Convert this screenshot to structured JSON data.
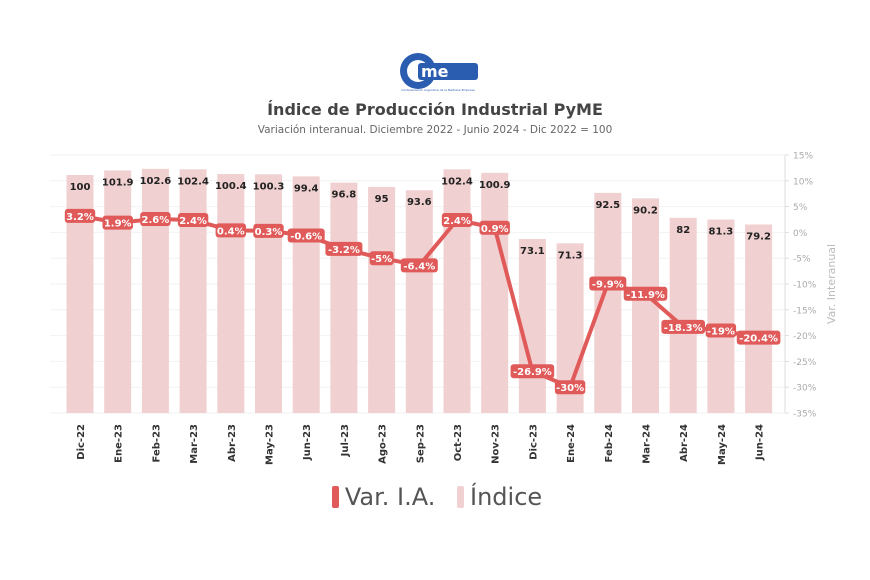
{
  "header": {
    "logo_text": "cme",
    "logo_tagline": "Confederación Argentina de la Mediana Empresa",
    "title": "Índice de Producción Industrial PyME",
    "subtitle": "Variación interanual. Diciembre 2022 - Junio 2024 - Dic 2022 = 100"
  },
  "colors": {
    "line": "#e05a5a",
    "bar": "#f0d0d0",
    "logo": "#2a5db0"
  },
  "chart_data": {
    "type": "bar+line",
    "title": "Índice de Producción Industrial PyME",
    "categories": [
      "Dic-22",
      "Ene-23",
      "Feb-23",
      "Mar-23",
      "Abr-23",
      "May-23",
      "Jun-23",
      "Jul-23",
      "Ago-23",
      "Sep-23",
      "Oct-23",
      "Nov-23",
      "Dic-23",
      "Ene-24",
      "Feb-24",
      "Mar-24",
      "Abr-24",
      "May-24",
      "Jun-24"
    ],
    "series": [
      {
        "name": "Índice",
        "type": "bar",
        "values": [
          100,
          101.9,
          102.6,
          102.4,
          100.4,
          100.3,
          99.4,
          96.8,
          95,
          93.6,
          102.4,
          100.9,
          73.1,
          71.3,
          92.5,
          90.2,
          82,
          81.3,
          79.2
        ],
        "labels": [
          "100",
          "101.9",
          "102.6",
          "102.4",
          "100.4",
          "100.3",
          "99.4",
          "96.8",
          "95",
          "93.6",
          "102.4",
          "100.9",
          "73.1",
          "71.3",
          "92.5",
          "90.2",
          "82",
          "81.3",
          "79.2"
        ]
      },
      {
        "name": "Var. I.A.",
        "type": "line",
        "axis": "right",
        "values": [
          3.2,
          1.9,
          2.6,
          2.4,
          0.4,
          0.3,
          -0.6,
          -3.2,
          -5,
          -6.4,
          2.4,
          0.9,
          -26.9,
          -30,
          -9.9,
          -11.9,
          -18.3,
          -19,
          -20.4
        ],
        "labels": [
          "3.2%",
          "1.9%",
          "2.6%",
          "2.4%",
          "0.4%",
          "0.3%",
          "-0.6%",
          "-3.2%",
          "-5%",
          "-6.4%",
          "2.4%",
          "0.9%",
          "-26.9%",
          "-30%",
          "-9.9%",
          "-11.9%",
          "-18.3%",
          "-19%",
          "-20.4%"
        ]
      }
    ],
    "y_right": {
      "label": "Var. Interanual",
      "range": [
        -35,
        15
      ],
      "ticks": [
        "15%",
        "10%",
        "5%",
        "0%",
        "-5%",
        "-10%",
        "-15%",
        "-20%",
        "-25%",
        "-30%",
        "-35%"
      ]
    },
    "legend": [
      "Var. I.A.",
      "Índice"
    ],
    "legend_position": "bottom"
  }
}
